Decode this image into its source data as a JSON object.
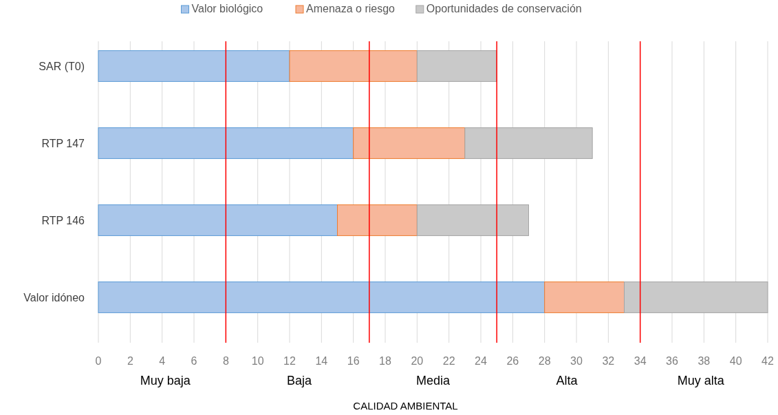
{
  "chart_data": {
    "type": "bar",
    "orientation": "horizontal",
    "stacked": true,
    "xlabel": "CALIDAD AMBIENTAL",
    "categories": [
      "SAR (T0)",
      "RTP 147",
      "RTP 146",
      "Valor idóneo"
    ],
    "series": [
      {
        "name": "Valor biológico",
        "color": "#a9c6ea",
        "values": [
          12,
          16,
          15,
          28
        ]
      },
      {
        "name": "Amenaza o riesgo",
        "color": "#f7b79b",
        "values": [
          8,
          7,
          5,
          5
        ]
      },
      {
        "name": "Oportunidades de conservación",
        "color": "#c9c9c9",
        "values": [
          5,
          8,
          7,
          9
        ]
      }
    ],
    "xlim": [
      0,
      42
    ],
    "xticks": [
      0,
      2,
      4,
      6,
      8,
      10,
      12,
      14,
      16,
      18,
      20,
      22,
      24,
      26,
      28,
      30,
      32,
      34,
      36,
      38,
      40,
      42
    ],
    "grid": "x",
    "legend": "top",
    "ref_lines": [
      {
        "axis": "x",
        "value": 8,
        "color": "#ff0000"
      },
      {
        "axis": "x",
        "value": 17,
        "color": "#ff0000"
      },
      {
        "axis": "x",
        "value": 25,
        "color": "#ff0000"
      },
      {
        "axis": "x",
        "value": 34,
        "color": "#ff0000"
      }
    ],
    "annotations": [
      "Muy baja",
      "Baja",
      "Media",
      "Alta",
      "Muy alta"
    ]
  }
}
